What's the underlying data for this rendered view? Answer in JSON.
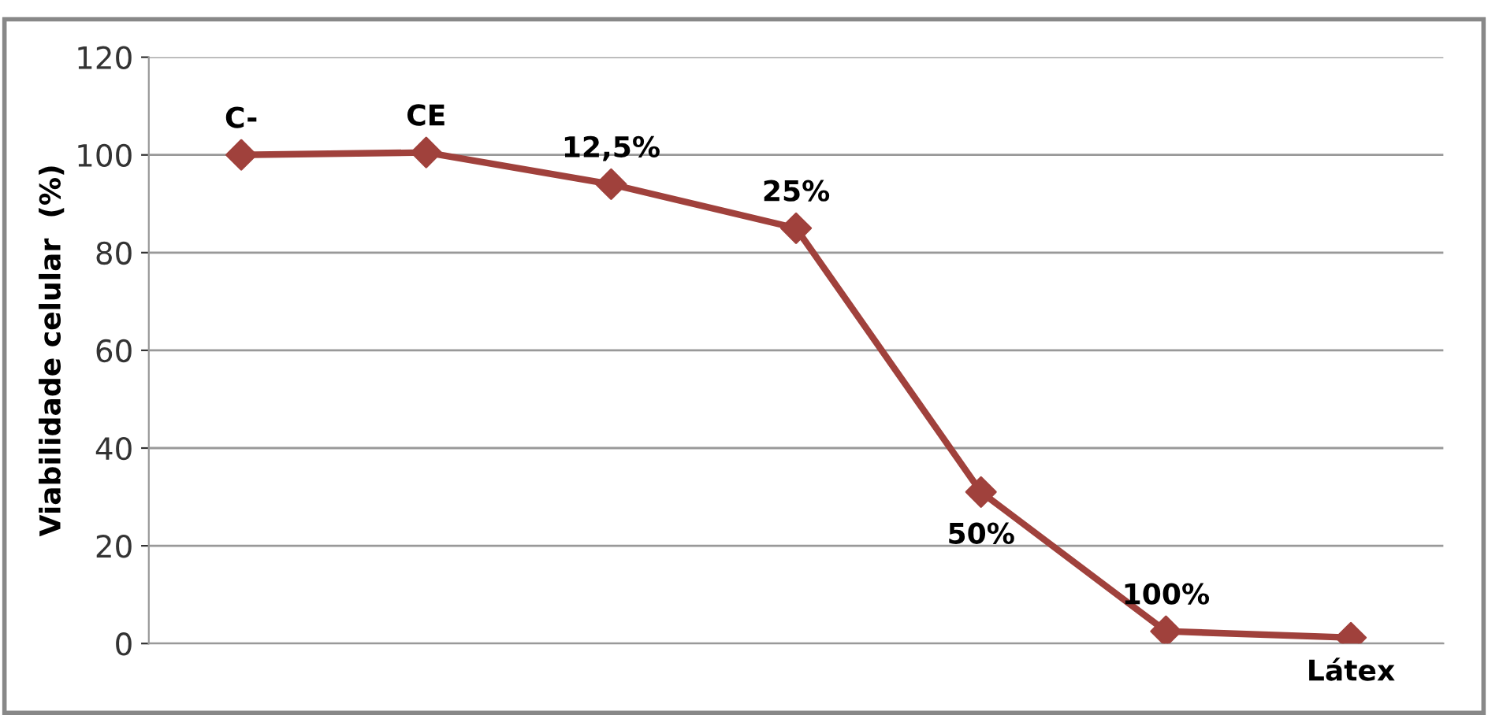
{
  "chart_data": {
    "type": "line",
    "ylabel": "Viabilidade celular  (%)",
    "categories": [
      "C-",
      "CE",
      "12,5%",
      "25%",
      "50%",
      "100%",
      "Látex"
    ],
    "series": [
      {
        "color": "#a0413c",
        "values": [
          100,
          100.5,
          94,
          85,
          31,
          2.5,
          1.2
        ]
      }
    ],
    "ylim": [
      0,
      120
    ],
    "yticks": [
      0,
      20,
      40,
      60,
      80,
      100,
      120
    ],
    "grid": "y",
    "marker": "diamond",
    "line_style": "solid",
    "tick_labels": "y"
  }
}
